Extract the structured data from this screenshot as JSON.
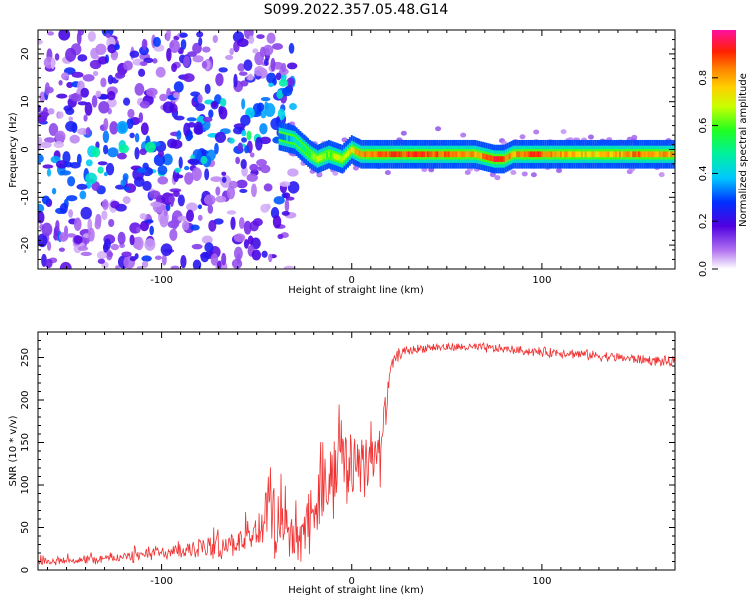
{
  "figure": {
    "title": "S099.2022.357.05.48.G14"
  },
  "colors": {
    "snr_line": "#f03232",
    "axes": "#000000",
    "background": "#ffffff"
  },
  "chart_data": [
    {
      "type": "heatmap",
      "title": "S099.2022.357.05.48.G14",
      "xlabel": "Height of straight line (km)",
      "ylabel": "Frequency (Hz)",
      "xlim": [
        -165,
        170
      ],
      "ylim": [
        -25,
        25
      ],
      "xticks": [
        -100,
        0,
        100
      ],
      "xtick_labels": [
        "-100",
        "0",
        "100"
      ],
      "yticks": [
        -20,
        -10,
        0,
        10,
        20
      ],
      "ytick_labels": [
        "-20",
        "-10",
        "0",
        "10",
        "20"
      ],
      "grid": false,
      "colorbar": {
        "label": "Normalized spectral amplitude",
        "range": [
          0.0,
          1.0
        ],
        "ticks": [
          0.0,
          0.2,
          0.4,
          0.6,
          0.8
        ],
        "tick_labels": [
          "0.0",
          "0.2",
          "0.4",
          "0.6",
          "0.8"
        ],
        "colormap": "gist_ncar-like (white, purple, blue, cyan, green, yellow, orange, red, magenta)"
      },
      "ridge": {
        "description": "dominant frequency vs height",
        "x": [
          -40,
          -30,
          -22,
          -18,
          -12,
          -5,
          0,
          5,
          10,
          30,
          50,
          65,
          75,
          80,
          85,
          90,
          95,
          110,
          130,
          150,
          170
        ],
        "y": [
          3,
          2,
          -1,
          -2,
          -1,
          -2,
          0,
          -1,
          -1,
          -1,
          -1,
          -1,
          -2,
          -2,
          -1,
          -1,
          -1,
          -1,
          -1,
          -1,
          -1
        ],
        "amplitude": [
          0.3,
          0.4,
          0.55,
          0.7,
          0.6,
          0.7,
          0.75,
          0.8,
          0.85,
          0.9,
          0.85,
          0.8,
          0.9,
          0.85,
          0.8,
          0.85,
          0.9,
          0.8,
          0.75,
          0.85,
          0.8
        ]
      }
    },
    {
      "type": "line",
      "xlabel": "Height of straight line (km)",
      "ylabel": "SNR (10 * v/v)",
      "xlim": [
        -165,
        170
      ],
      "ylim": [
        0,
        280
      ],
      "xticks": [
        -100,
        0,
        100
      ],
      "xtick_labels": [
        "-100",
        "0",
        "100"
      ],
      "yticks": [
        0,
        50,
        100,
        150,
        200,
        250
      ],
      "ytick_labels": [
        "0",
        "50",
        "100",
        "150",
        "200",
        "250"
      ],
      "grid": false,
      "series": [
        {
          "color": "#f03232",
          "envelope_x": [
            -165,
            -140,
            -120,
            -100,
            -80,
            -60,
            -50,
            -42,
            -38,
            -32,
            -28,
            -22,
            -15,
            -10,
            -5,
            0,
            5,
            10,
            15,
            20,
            22,
            25,
            30,
            40,
            50,
            60,
            70,
            80,
            90,
            100,
            110,
            120,
            130,
            140,
            150,
            160,
            170
          ],
          "mean": [
            10,
            12,
            15,
            20,
            25,
            32,
            45,
            70,
            60,
            45,
            30,
            60,
            95,
            115,
            120,
            125,
            135,
            130,
            135,
            230,
            245,
            255,
            258,
            262,
            262,
            262,
            261,
            260,
            258,
            256,
            256,
            254,
            252,
            250,
            248,
            246,
            244
          ],
          "spread": [
            5,
            6,
            8,
            10,
            15,
            20,
            30,
            60,
            55,
            40,
            25,
            50,
            55,
            60,
            60,
            55,
            55,
            45,
            40,
            12,
            10,
            8,
            7,
            6,
            6,
            6,
            7,
            6,
            6,
            7,
            7,
            7,
            7,
            7,
            7,
            7,
            8
          ],
          "num_samples": 900
        }
      ]
    }
  ]
}
